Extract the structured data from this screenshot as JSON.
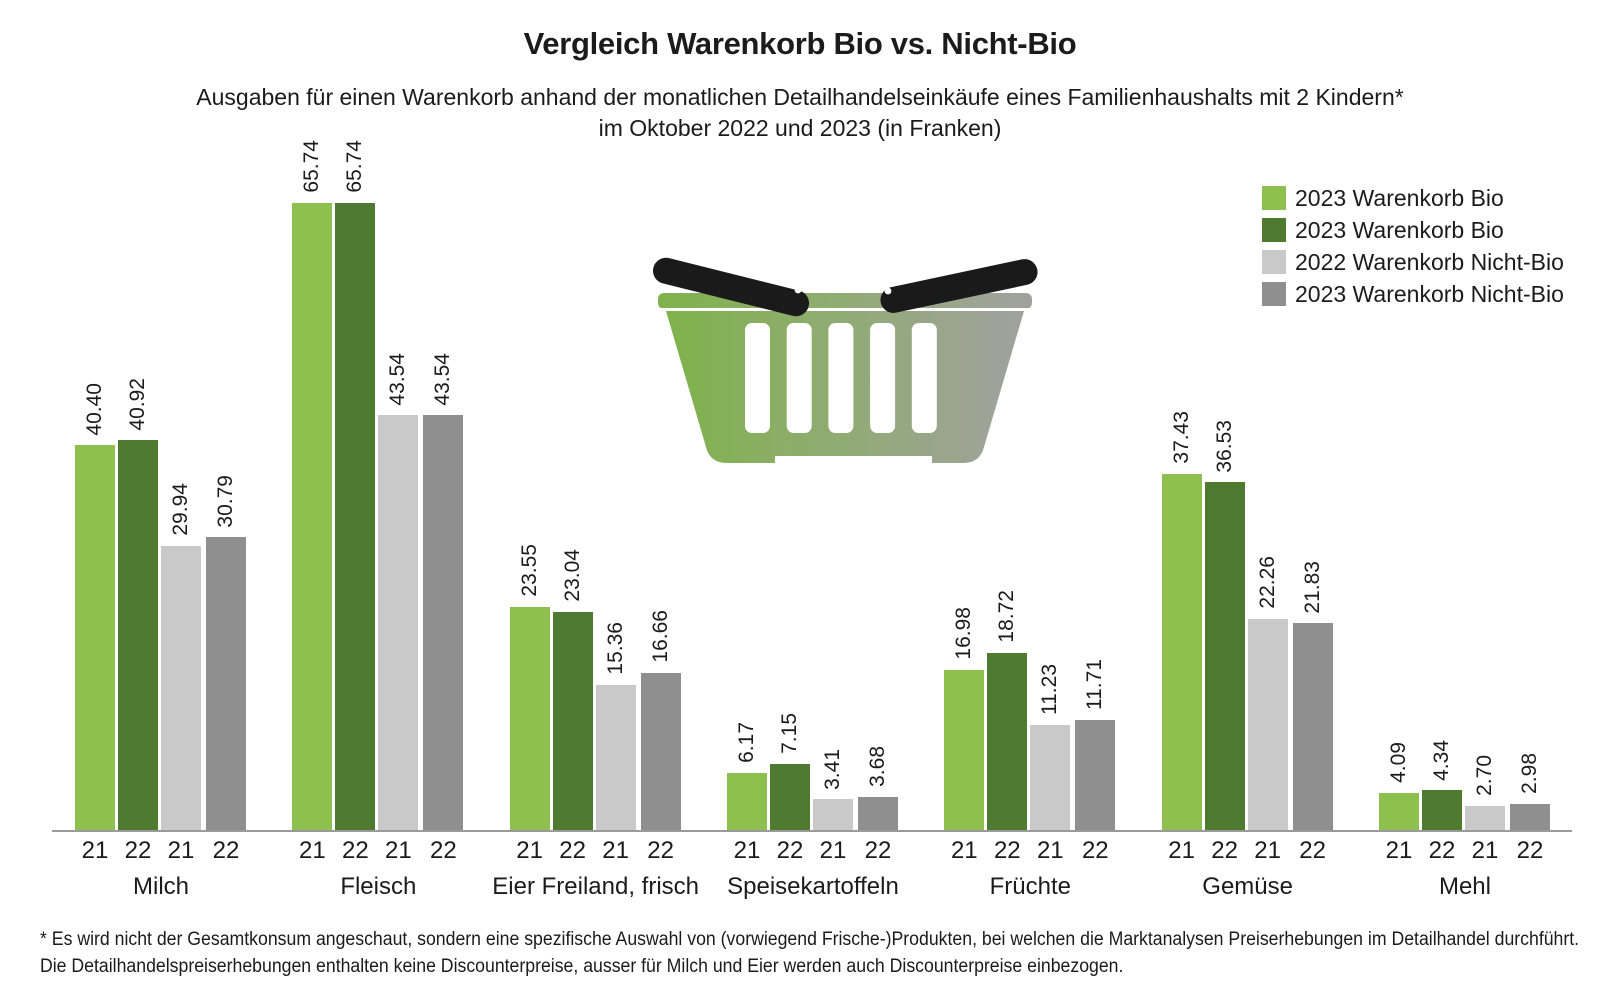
{
  "header": {
    "title": "Vergleich Warenkorb Bio vs. Nicht-Bio",
    "subtitle_line1": "Ausgaben für einen Warenkorb anhand der monatlichen Detailhandelseinkäufe eines Familienhaushalts mit 2 Kindern*",
    "subtitle_line2": "im Oktober 2022 und 2023 (in Franken)"
  },
  "legend": {
    "items": [
      {
        "label": "2023 Warenkorb Bio",
        "color": "#8dc04e"
      },
      {
        "label": "2023 Warenkorb Bio",
        "color": "#4e7b2f"
      },
      {
        "label": "2022 Warenkorb Nicht-Bio",
        "color": "#c9c9c9"
      },
      {
        "label": "2023 Warenkorb Nicht-Bio",
        "color": "#8f8f8f"
      }
    ]
  },
  "chart_data": {
    "type": "bar",
    "title": "Vergleich Warenkorb Bio vs. Nicht-Bio",
    "unit": "Franken",
    "categories": [
      "Milch",
      "Fleisch",
      "Eier Freiland, frisch",
      "Speisekartoffeln",
      "Früchte",
      "Gemüse",
      "Mehl"
    ],
    "bar_year_labels": [
      "21",
      "22",
      "21",
      "22"
    ],
    "series": [
      {
        "name": "2023 Warenkorb Bio",
        "color": "#8dc04e",
        "values": [
          40.4,
          65.74,
          23.55,
          6.17,
          16.98,
          37.43,
          4.09
        ]
      },
      {
        "name": "2023 Warenkorb Bio",
        "color": "#4e7b2f",
        "values": [
          40.92,
          65.74,
          23.04,
          7.15,
          18.72,
          36.53,
          4.34
        ]
      },
      {
        "name": "2022 Warenkorb Nicht-Bio",
        "color": "#c9c9c9",
        "values": [
          29.94,
          43.54,
          15.36,
          3.41,
          11.23,
          22.26,
          2.7
        ]
      },
      {
        "name": "2023 Warenkorb Nicht-Bio",
        "color": "#8f8f8f",
        "values": [
          30.79,
          43.54,
          16.66,
          3.68,
          11.71,
          21.83,
          2.98
        ]
      }
    ],
    "ylim": [
      0,
      66
    ],
    "value_label_format": "2dp",
    "grid": false,
    "legend_position": "top-right"
  },
  "icons": {
    "basket": "shopping-basket-icon",
    "basket_green": "#7fb24c",
    "basket_gray": "#a1a19f",
    "basket_handle": "#1a1a1a"
  },
  "footnote": {
    "line1": "* Es wird nicht der Gesamtkonsum angeschaut, sondern eine spezifische Auswahl von (vorwiegend Frische-)Produkten, bei welchen die Marktanalysen Preiserhebungen im Detailhandel durchführt.",
    "line2": "Die Detailhandelspreiserhebungen enthalten keine Discounterpreise, ausser für Milch und Eier werden auch Discounterpreise einbezogen."
  }
}
